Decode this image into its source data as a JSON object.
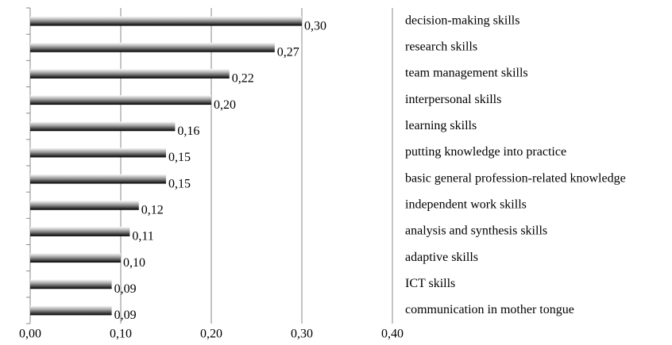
{
  "chart_data": {
    "type": "bar",
    "orientation": "horizontal",
    "categories": [
      "decision-making skills",
      "research skills",
      "team management skills",
      "interpersonal skills",
      "learning skills",
      "putting knowledge into practice",
      "basic general profession-related knowledge",
      "independent work skills",
      "analysis and synthesis skills",
      "adaptive skills",
      "ICT skills",
      "communication in mother tongue"
    ],
    "values": [
      0.3,
      0.27,
      0.22,
      0.2,
      0.16,
      0.15,
      0.15,
      0.12,
      0.11,
      0.1,
      0.09,
      0.09
    ],
    "value_labels": [
      "0,30",
      "0,27",
      "0,22",
      "0,20",
      "0,16",
      "0,15",
      "0,15",
      "0,12",
      "0,11",
      "0,10",
      "0,09",
      "0,09"
    ],
    "xlim": [
      0,
      0.4
    ],
    "xticks": [
      {
        "value": 0,
        "label": "0,00"
      },
      {
        "value": 0.1,
        "label": "0,10"
      },
      {
        "value": 0.2,
        "label": "0,20"
      },
      {
        "value": 0.3,
        "label": "0,30"
      },
      {
        "value": 0.4,
        "label": "0,40"
      }
    ],
    "grid": true
  }
}
